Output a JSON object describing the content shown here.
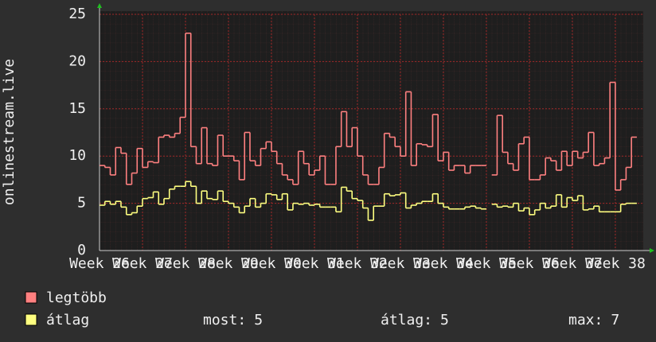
{
  "chart_data": {
    "type": "step-line",
    "y_label": "onlinestream.live",
    "xlim": [
      26,
      38.65
    ],
    "ylim": [
      0,
      25
    ],
    "yticks": [
      0,
      5,
      10,
      15,
      20,
      25
    ],
    "xticks": [
      {
        "value": 26,
        "label": "Week 26"
      },
      {
        "value": 27,
        "label": "Week 27"
      },
      {
        "value": 28,
        "label": "Week 28"
      },
      {
        "value": 29,
        "label": "Week 29"
      },
      {
        "value": 30,
        "label": "Week 30"
      },
      {
        "value": 31,
        "label": "Week 31"
      },
      {
        "value": 32,
        "label": "Week 32"
      },
      {
        "value": 33,
        "label": "Week 33"
      },
      {
        "value": 34,
        "label": "Week 34"
      },
      {
        "value": 35,
        "label": "Week 35"
      },
      {
        "value": 36,
        "label": "Week 36"
      },
      {
        "value": 37,
        "label": "Week 37"
      },
      {
        "value": 38,
        "label": "Week 38"
      }
    ],
    "grid": true,
    "x": [
      26,
      26.125,
      26.25,
      26.375,
      26.5,
      26.625,
      26.75,
      26.875,
      27,
      27.125,
      27.25,
      27.375,
      27.5,
      27.625,
      27.75,
      27.875,
      28,
      28.125,
      28.25,
      28.375,
      28.5,
      28.625,
      28.75,
      28.875,
      29,
      29.125,
      29.25,
      29.375,
      29.5,
      29.625,
      29.75,
      29.875,
      30,
      30.125,
      30.25,
      30.375,
      30.5,
      30.625,
      30.75,
      30.875,
      31,
      31.125,
      31.25,
      31.375,
      31.5,
      31.625,
      31.75,
      31.875,
      32,
      32.125,
      32.25,
      32.375,
      32.5,
      32.625,
      32.75,
      32.875,
      33,
      33.125,
      33.25,
      33.375,
      33.5,
      33.625,
      33.75,
      33.875,
      34,
      34.125,
      34.25,
      34.375,
      34.5,
      34.625,
      34.75,
      34.875,
      35,
      35.125,
      35.25,
      35.375,
      35.5,
      35.625,
      35.75,
      35.875,
      36,
      36.125,
      36.25,
      36.375,
      36.5,
      36.625,
      36.75,
      36.875,
      37,
      37.125,
      37.25,
      37.375,
      37.5,
      37.625,
      37.75,
      37.875,
      38,
      38.125,
      38.25,
      38.375
    ],
    "series": [
      {
        "name": "legtöbb",
        "color": "#ff8080",
        "values": [
          9,
          8.8,
          8,
          10.9,
          10.3,
          7,
          8.2,
          10.8,
          8.8,
          9.4,
          9.3,
          12,
          12.2,
          12,
          12.4,
          14.1,
          23,
          11,
          9.2,
          13,
          9.2,
          9,
          12.2,
          10,
          10,
          9.5,
          7.5,
          12.5,
          9.5,
          9,
          10.8,
          11.5,
          10.5,
          9.2,
          8,
          7.5,
          7,
          10.5,
          9.2,
          8,
          8.5,
          10,
          7,
          7,
          11,
          14.7,
          11,
          13,
          10,
          8,
          7,
          7,
          8.8,
          12.4,
          12,
          11,
          10,
          16.8,
          9,
          11.3,
          11.2,
          11,
          14.4,
          9.5,
          10.4,
          8.5,
          9,
          9,
          8.2,
          9,
          9,
          9,
          null,
          8,
          14.3,
          10.4,
          9.2,
          8.5,
          11.3,
          12,
          7.5,
          7.5,
          8,
          9.8,
          9.5,
          8.5,
          10.5,
          9,
          10.5,
          9.8,
          10.4,
          12.5,
          9,
          9.2,
          9.8,
          17.8,
          6.4,
          7.5,
          8.8,
          12
        ]
      },
      {
        "name": "átlag",
        "color": "#ffff80",
        "values": [
          4.8,
          5.2,
          4.9,
          5.2,
          4.6,
          3.8,
          4,
          4.7,
          5.5,
          5.6,
          6.2,
          4.9,
          5.5,
          6.5,
          6.8,
          6.8,
          7.3,
          6.8,
          5,
          6.3,
          5.5,
          5.4,
          6.3,
          5.2,
          5,
          4.6,
          4,
          4.7,
          5.5,
          4.6,
          5,
          6,
          5.9,
          5.4,
          6,
          4.3,
          5,
          4.9,
          5,
          4.8,
          4.9,
          4.6,
          4.6,
          4.6,
          4.1,
          6.7,
          6.3,
          5.5,
          5.3,
          4.5,
          3.2,
          4.7,
          4.7,
          6,
          5.8,
          5.9,
          6.1,
          4.5,
          4.8,
          5,
          5.2,
          5.2,
          6,
          5,
          4.6,
          4.4,
          4.4,
          4.4,
          4.6,
          4.7,
          4.5,
          4.4,
          null,
          4.9,
          4.6,
          4.7,
          4.6,
          5,
          4.2,
          4.5,
          3.8,
          4.3,
          5,
          4.5,
          4.7,
          5.9,
          4.6,
          5.6,
          5.3,
          5.8,
          4.3,
          4.4,
          4.7,
          4.1,
          4.1,
          4.1,
          4.1,
          4.9,
          5,
          5
        ]
      }
    ],
    "legend_stats": [
      {
        "label": "most:",
        "value": 5
      },
      {
        "label": "átlag:",
        "value": 5
      },
      {
        "label": "max:",
        "value": 7
      }
    ]
  }
}
